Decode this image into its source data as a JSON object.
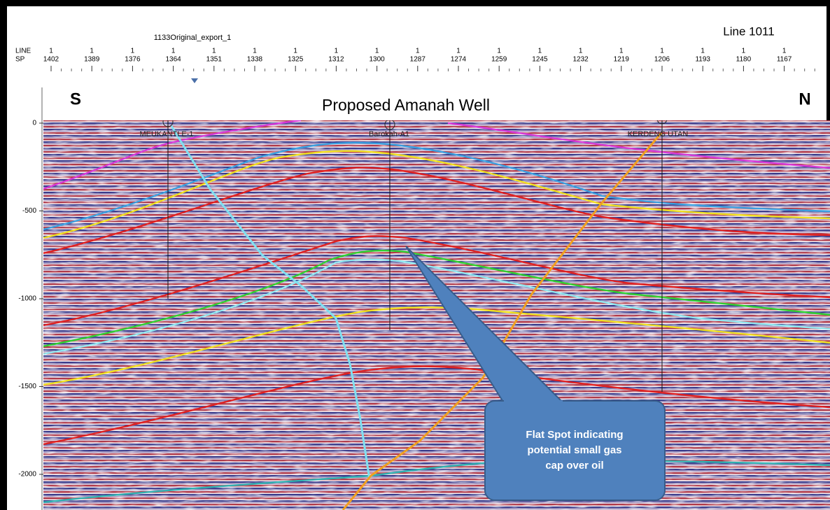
{
  "header": {
    "export_name": "1133Original_export_1",
    "line_name": "Line 1011",
    "line_label": "LINE",
    "sp_label": "SP"
  },
  "ruler": [
    {
      "line": "1",
      "sp": "1402"
    },
    {
      "line": "1",
      "sp": "1389"
    },
    {
      "line": "1",
      "sp": "1376"
    },
    {
      "line": "1",
      "sp": "1364"
    },
    {
      "line": "1",
      "sp": "1351"
    },
    {
      "line": "1",
      "sp": "1338"
    },
    {
      "line": "1",
      "sp": "1325"
    },
    {
      "line": "1",
      "sp": "1312"
    },
    {
      "line": "1",
      "sp": "1300"
    },
    {
      "line": "1",
      "sp": "1287"
    },
    {
      "line": "1",
      "sp": "1274"
    },
    {
      "line": "1",
      "sp": "1259"
    },
    {
      "line": "1",
      "sp": "1245"
    },
    {
      "line": "1",
      "sp": "1232"
    },
    {
      "line": "1",
      "sp": "1219"
    },
    {
      "line": "1",
      "sp": "1206"
    },
    {
      "line": "1",
      "sp": "1193"
    },
    {
      "line": "1",
      "sp": "1180"
    },
    {
      "line": "1",
      "sp": "1167"
    }
  ],
  "section": {
    "title": "Proposed Amanah Well",
    "left_direction": "S",
    "right_direction": "N",
    "wells": [
      "MEUKANTI E-1",
      "Barokah-A1",
      "KERDENG UTAN"
    ],
    "depth_ticks": [
      "0",
      "-500",
      "-1000",
      "-1500",
      "-2000"
    ]
  },
  "callout": {
    "lines": [
      "Flat Spot indicating",
      "potential small gas",
      "cap over oil"
    ]
  }
}
